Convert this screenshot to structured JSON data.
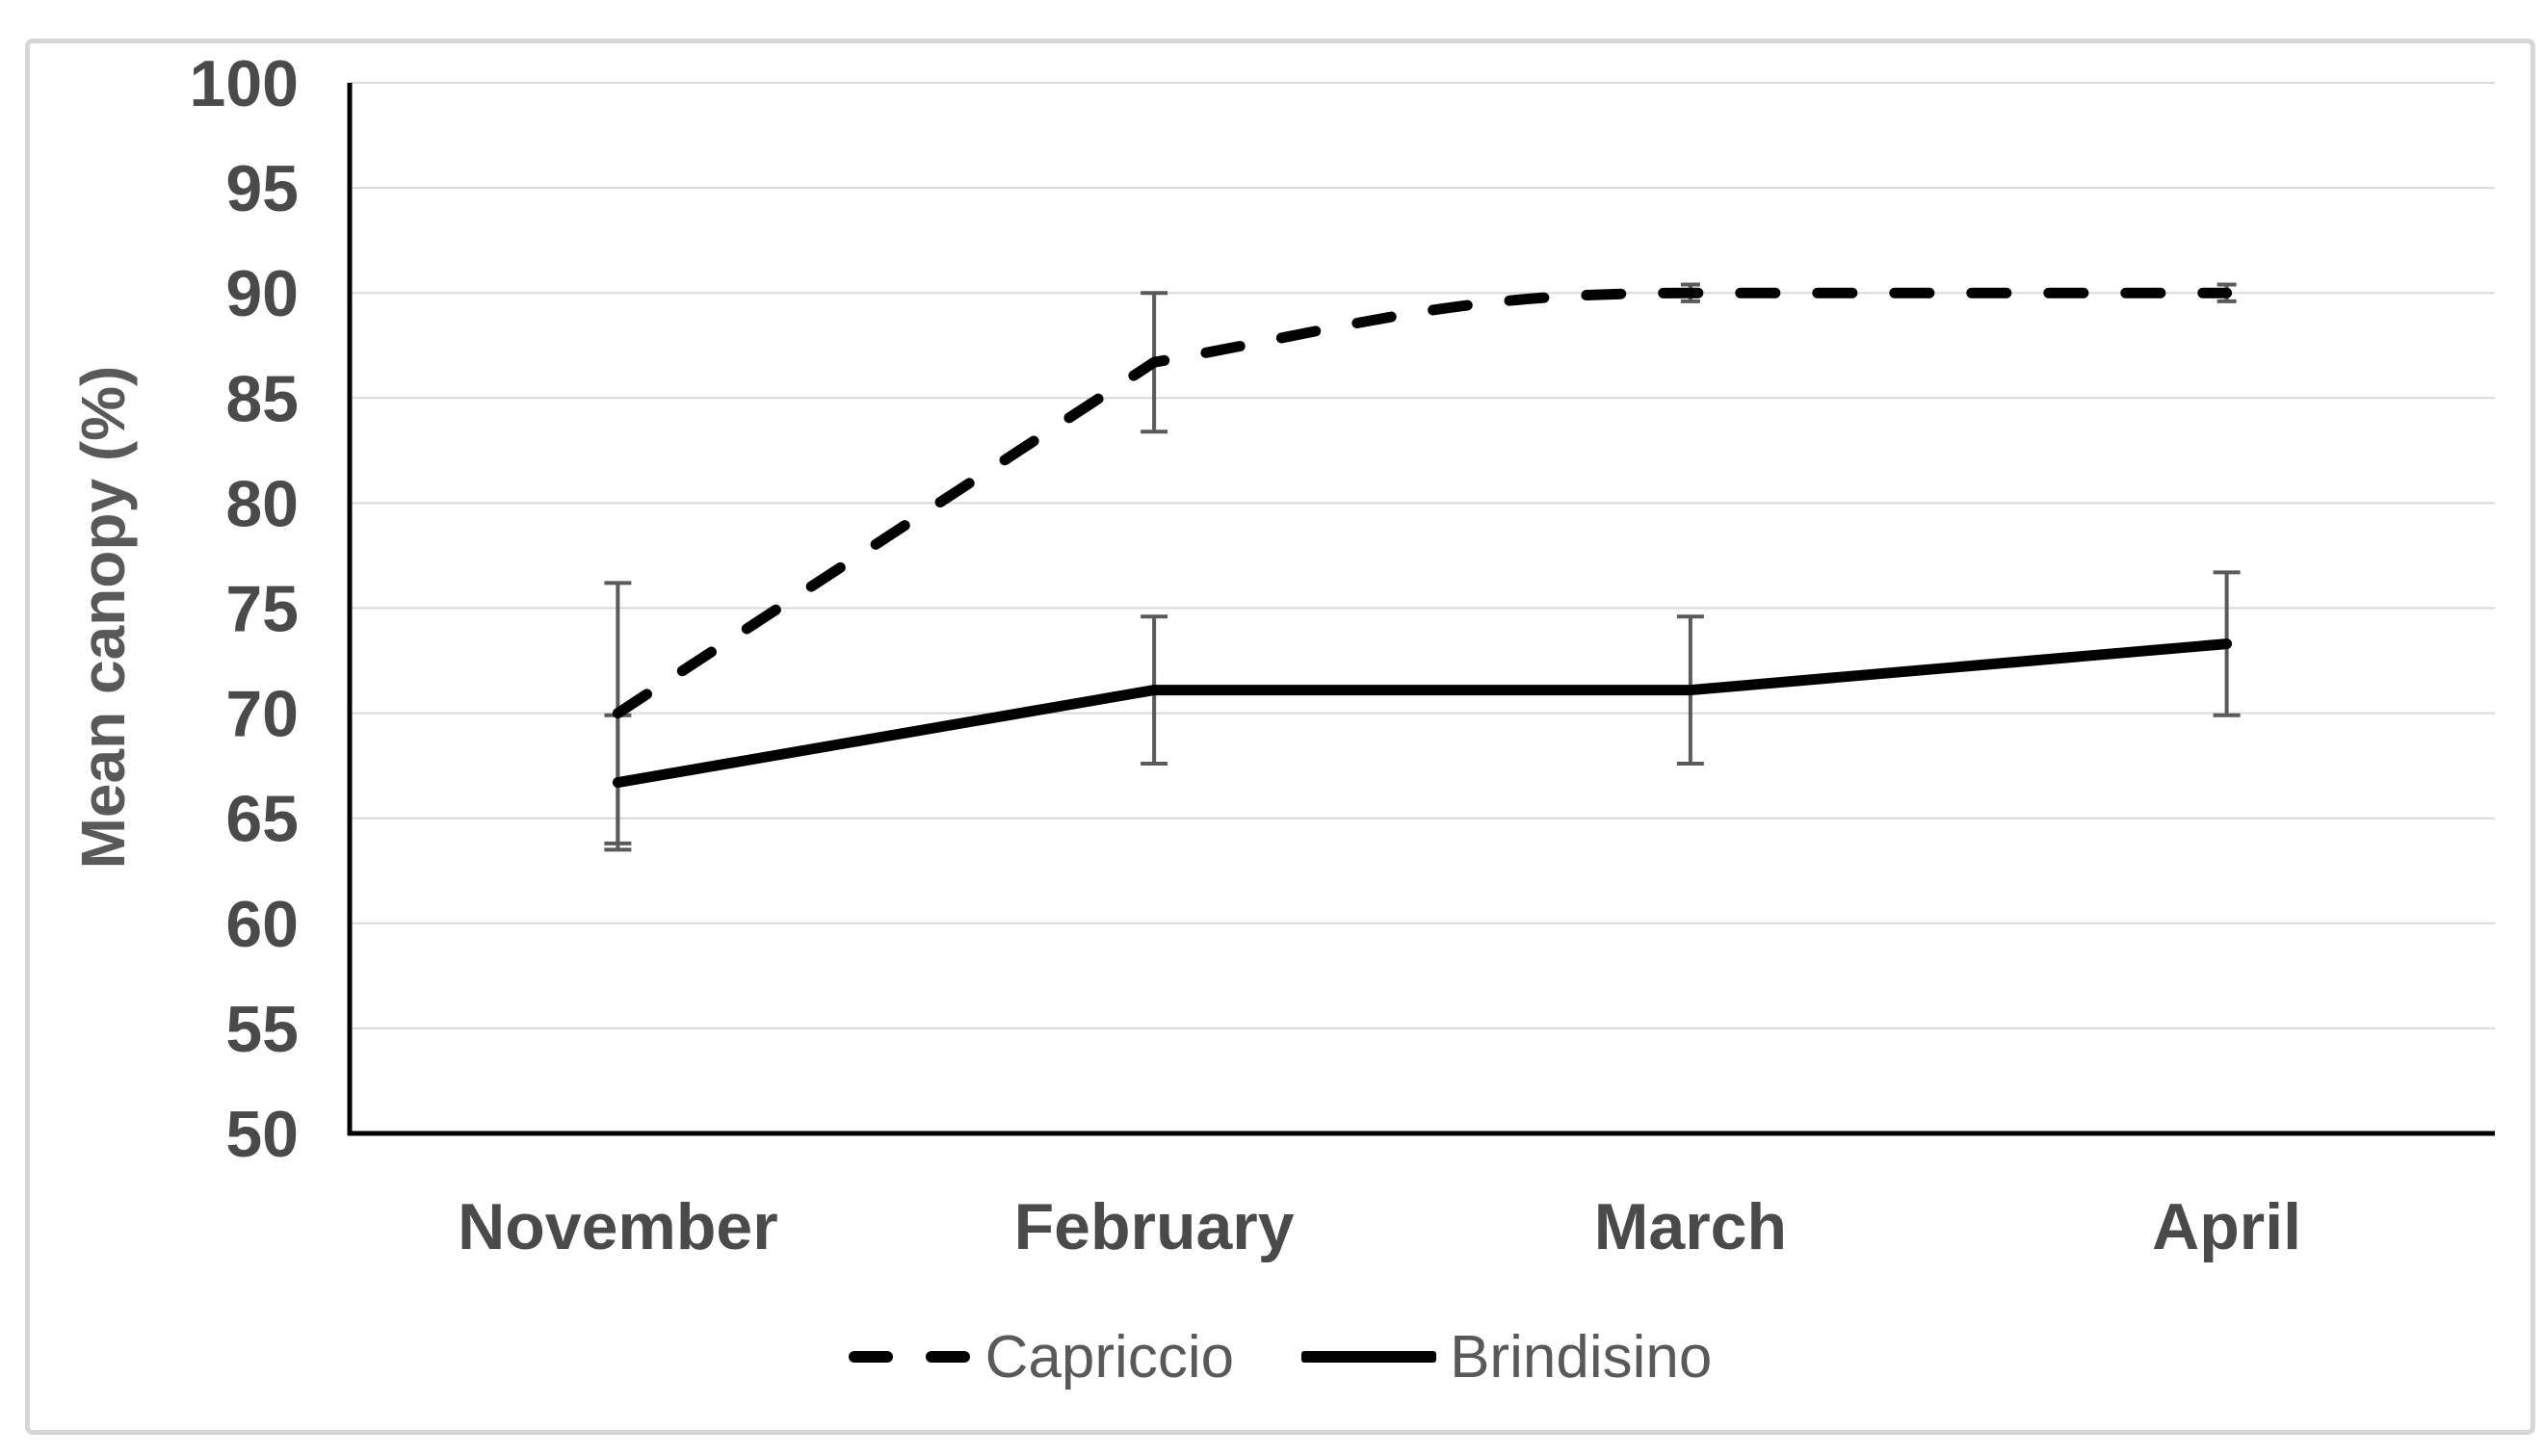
{
  "chart_data": {
    "type": "line",
    "title": "",
    "xlabel": "",
    "ylabel": "Mean canopy (%)",
    "ylim": [
      50,
      100
    ],
    "ytick_step": 5,
    "yticks": [
      100,
      95,
      90,
      85,
      80,
      75,
      70,
      65,
      60,
      55,
      50
    ],
    "grid": true,
    "legend_position": "bottom-center",
    "categories": [
      "November",
      "February",
      "March",
      "April"
    ],
    "series": [
      {
        "name": "Capriccio",
        "line_style": "dashed",
        "color": "#000000",
        "values": [
          70.0,
          86.7,
          90.0,
          90.0
        ],
        "error_bars": [
          6.2,
          3.3,
          0.4,
          0.4
        ]
      },
      {
        "name": "Brindisino",
        "line_style": "solid",
        "color": "#000000",
        "values": [
          66.7,
          71.1,
          71.1,
          73.3
        ],
        "error_bars": [
          3.2,
          3.5,
          3.5,
          3.4
        ]
      }
    ]
  },
  "legend": {
    "items": [
      {
        "label": "Capriccio",
        "sample": "dashed-line"
      },
      {
        "label": "Brindisino",
        "sample": "solid-line"
      }
    ]
  },
  "colors": {
    "series_line": "#000000",
    "gridline": "#d9d9d9",
    "axis_line": "#000000",
    "error_bar": "#5a5a5a",
    "tick_text": "#4a4a4a",
    "axis_title_text": "#595959",
    "legend_text": "#595959",
    "figure_border": "#d6d6d6",
    "background": "#ffffff"
  }
}
